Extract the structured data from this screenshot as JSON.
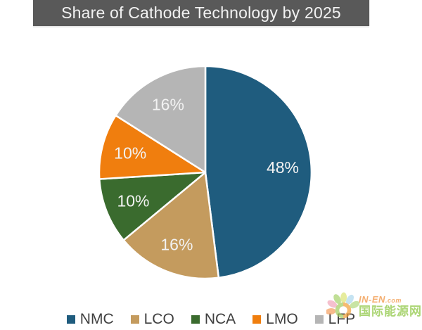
{
  "title_bar": {
    "text": "Share of Cathode Technology by 2025",
    "bg_color": "#595959",
    "text_color": "#F2F2F2"
  },
  "chart_data": {
    "type": "pie",
    "title": "Share of Cathode Technology by 2025",
    "categories": [
      "NMC",
      "LCO",
      "NCA",
      "LMO",
      "LFP"
    ],
    "values": [
      48,
      16,
      10,
      10,
      16
    ],
    "unit": "percent",
    "data_labels": [
      "48%",
      "16%",
      "10%",
      "10%",
      "16%"
    ],
    "slice_colors": [
      "#1F5C7E",
      "#C49B5E",
      "#3A6B2E",
      "#F07E0E",
      "#B5B5B5"
    ],
    "slice_border_color": "#FFFFFF",
    "data_label_color": "#F2F2F2",
    "start_angle_deg": 0,
    "direction": "clockwise",
    "legend_position": "bottom",
    "legend_text_color": "#404040",
    "data_labels_position": "inside"
  },
  "watermark": {
    "logo": "flower-sun-logo",
    "brand": "IN-EN",
    "brand_suffix": ".com",
    "name_cn": "国际能源网",
    "brand_color": "#F0913C",
    "cn_color": "#8CC63F"
  }
}
